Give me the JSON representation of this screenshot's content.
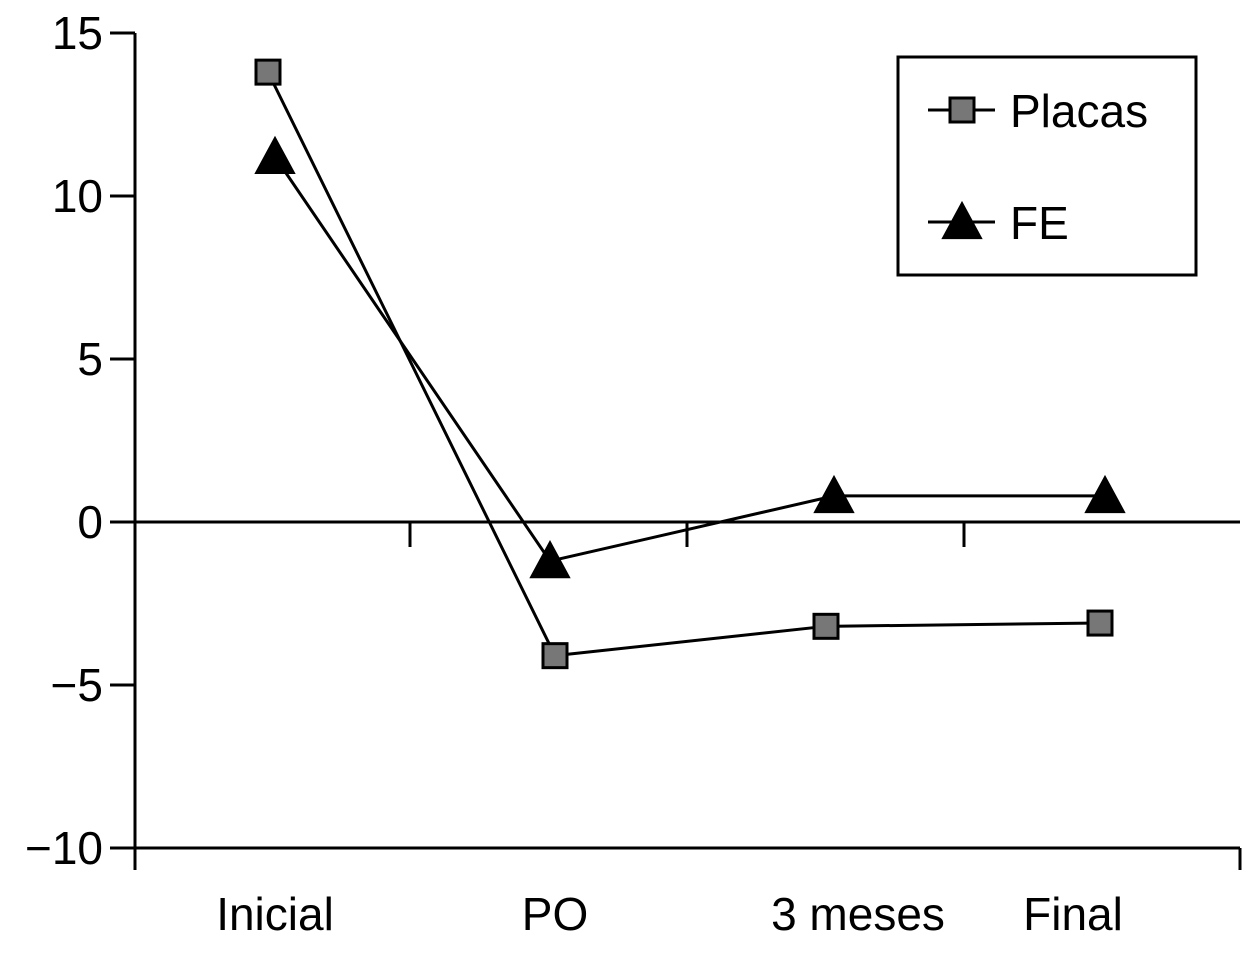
{
  "chart_data": {
    "type": "line",
    "categories": [
      "Inicial",
      "PO",
      "3 meses",
      "Final"
    ],
    "series": [
      {
        "name": "Placas",
        "marker": "square",
        "color": "#777777",
        "values": [
          13.8,
          -4.1,
          -3.2,
          -3.1
        ]
      },
      {
        "name": "FE",
        "marker": "triangle",
        "color": "#000000",
        "values": [
          11.2,
          -1.2,
          0.8,
          0.8
        ]
      }
    ],
    "ylim": [
      -10,
      15
    ],
    "yticks": [
      15,
      10,
      5,
      0,
      -5,
      -10
    ],
    "ytick_labels": [
      "15",
      "10",
      "5",
      "0",
      "−5",
      "−10"
    ],
    "title": "",
    "xlabel": "",
    "ylabel": "",
    "legend_position": "top-right",
    "grid": false
  }
}
